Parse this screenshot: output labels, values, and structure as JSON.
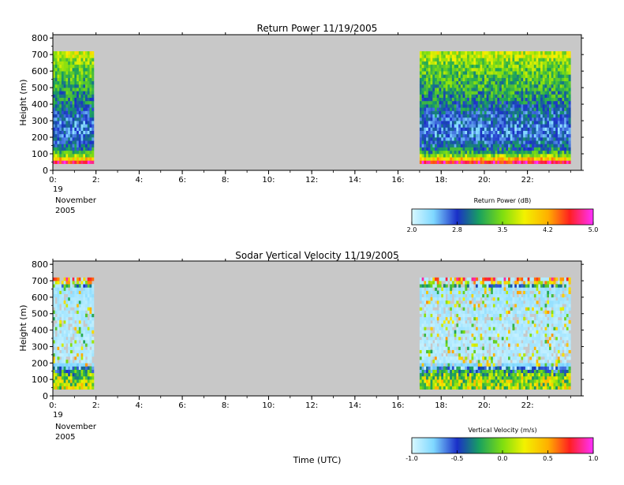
{
  "chart_data": [
    {
      "type": "heatmap",
      "title": "Return Power 11/19/2005",
      "ylabel": "Height (m)",
      "xlabel": "",
      "x_ticks": [
        "0:",
        "2:",
        "4:",
        "6:",
        "8:",
        "10:",
        "12:",
        "14:",
        "16:",
        "18:",
        "20:",
        "22:"
      ],
      "x_tick_hours": [
        0,
        2,
        4,
        6,
        8,
        10,
        12,
        14,
        16,
        18,
        20,
        22
      ],
      "y_ticks": [
        0,
        100,
        200,
        300,
        400,
        500,
        600,
        700,
        800
      ],
      "ylim": [
        0,
        820
      ],
      "xlim_hours": [
        0,
        24.5
      ],
      "date_label": [
        "19",
        "November",
        "2005"
      ],
      "data_segments_hours": [
        [
          0,
          1.9
        ],
        [
          17.0,
          24.0
        ]
      ],
      "data_height_range_m": [
        40,
        720
      ],
      "colorbar": {
        "label": "Return Power (dB)",
        "ticks": [
          "2.0",
          "2.8",
          "3.5",
          "4.2",
          "5.0"
        ],
        "range": [
          2.0,
          5.0
        ]
      },
      "profile_by_height": [
        {
          "height_m": 50,
          "value": 4.7
        },
        {
          "height_m": 75,
          "value": 3.9
        },
        {
          "height_m": 100,
          "value": 3.3
        },
        {
          "height_m": 150,
          "value": 2.8
        },
        {
          "height_m": 250,
          "value": 2.6
        },
        {
          "height_m": 350,
          "value": 2.8
        },
        {
          "height_m": 450,
          "value": 3.1
        },
        {
          "height_m": 550,
          "value": 3.3
        },
        {
          "height_m": 650,
          "value": 3.5
        },
        {
          "height_m": 700,
          "value": 3.7
        }
      ]
    },
    {
      "type": "heatmap",
      "title": "Sodar Vertical Velocity 11/19/2005",
      "ylabel": "Height (m)",
      "xlabel": "Time (UTC)",
      "x_ticks": [
        "0:",
        "2:",
        "4:",
        "6:",
        "8:",
        "10:",
        "12:",
        "14:",
        "16:",
        "18:",
        "20:",
        "22:"
      ],
      "x_tick_hours": [
        0,
        2,
        4,
        6,
        8,
        10,
        12,
        14,
        16,
        18,
        20,
        22
      ],
      "y_ticks": [
        0,
        100,
        200,
        300,
        400,
        500,
        600,
        700,
        800
      ],
      "ylim": [
        0,
        820
      ],
      "xlim_hours": [
        0,
        24.5
      ],
      "date_label": [
        "19",
        "November",
        "2005"
      ],
      "data_segments_hours": [
        [
          0,
          1.9
        ],
        [
          17.0,
          24.0
        ]
      ],
      "data_height_range_m": [
        40,
        720
      ],
      "colorbar": {
        "label": "Vertical Velocity (m/s)",
        "ticks": [
          "-1.0",
          "-0.5",
          "0.0",
          "0.5",
          "1.0"
        ],
        "range": [
          -1.0,
          1.0
        ]
      },
      "profile_by_height": [
        {
          "height_m": 60,
          "value": 0.1
        },
        {
          "height_m": 120,
          "value": 0.05
        },
        {
          "height_m": 200,
          "value": -0.95
        },
        {
          "height_m": 400,
          "value": -0.95
        },
        {
          "height_m": 650,
          "value": -0.9
        },
        {
          "height_m": 700,
          "value": 0.6
        }
      ]
    }
  ],
  "colors": {
    "plot_background": "#c8c8c8",
    "axes": "#000000",
    "page_background": "#ffffff"
  }
}
